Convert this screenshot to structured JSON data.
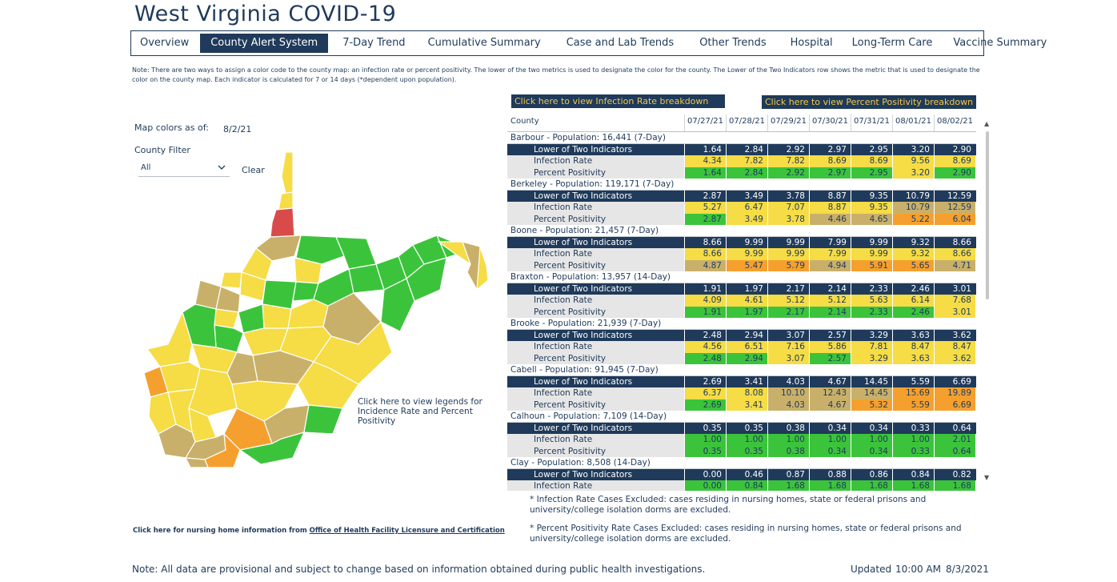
{
  "title": "West Virginia COVID-19",
  "nav": {
    "tabs": [
      {
        "label": "Overview",
        "active": false
      },
      {
        "label": "County Alert System",
        "active": true
      },
      {
        "label": "7-Day Trend",
        "active": false
      },
      {
        "label": "Cumulative Summary",
        "active": false
      },
      {
        "label": "Case and Lab Trends",
        "active": false
      },
      {
        "label": "Other Trends",
        "active": false
      },
      {
        "label": "Hospital",
        "active": false
      },
      {
        "label": "Long-Term Care",
        "active": false
      },
      {
        "label": "Vaccine Summary",
        "active": false
      }
    ]
  },
  "note_top": "Note: There are two ways to assign a color code to the county map: an infection rate or percent positivity. The lower of the two metrics is used to designate the color for the county. The Lower of the Two Indicators row shows the metric that is used to designate the color on the county map. Each indicator is calculated for 7 or 14 days (*dependent upon population).",
  "map_panel": {
    "map_colors_label": "Map colors as of:",
    "map_colors_date": "8/2/21",
    "county_filter_label": "County Filter",
    "filter_value": "All",
    "clear_label": "Clear",
    "legend_link": "Click here to view legends for Incidence Rate and Percent Positivity"
  },
  "nursing": {
    "prefix": "Click here for nursing home information from ",
    "link": "Office of Health Facility Licensure and Certification"
  },
  "buttons": {
    "infection_breakdown": "Click here to view Infection Rate breakdown",
    "positivity_breakdown": "Click here to view Percent Positivity breakdown"
  },
  "table": {
    "county_header": "County",
    "dates": [
      "07/27/21",
      "07/28/21",
      "07/29/21",
      "07/30/21",
      "07/31/21",
      "08/01/21",
      "08/02/21"
    ],
    "row_labels": [
      "Lower of Two Indicators",
      "Infection Rate",
      "Percent Positivity"
    ],
    "groups": [
      {
        "name": "Barbour - Population: 16,441 (7-Day)",
        "lower": [
          "1.64",
          "2.84",
          "2.92",
          "2.97",
          "2.95",
          "3.20",
          "2.90"
        ],
        "infection": [
          "4.34",
          "7.82",
          "7.82",
          "8.69",
          "8.69",
          "9.56",
          "8.69"
        ],
        "infection_colors": [
          "yellow",
          "yellow",
          "yellow",
          "yellow",
          "yellow",
          "yellow",
          "yellow"
        ],
        "positivity": [
          "1.64",
          "2.84",
          "2.92",
          "2.97",
          "2.95",
          "3.20",
          "2.90"
        ],
        "positivity_colors": [
          "green",
          "green",
          "green",
          "green",
          "green",
          "yellow",
          "green"
        ]
      },
      {
        "name": "Berkeley - Population: 119,171 (7-Day)",
        "lower": [
          "2.87",
          "3.49",
          "3.78",
          "8.87",
          "9.35",
          "10.79",
          "12.59"
        ],
        "infection": [
          "5.27",
          "6.47",
          "7.07",
          "8.87",
          "9.35",
          "10.79",
          "12.59"
        ],
        "infection_colors": [
          "yellow",
          "yellow",
          "yellow",
          "yellow",
          "yellow",
          "gold",
          "gold"
        ],
        "positivity": [
          "2.87",
          "3.49",
          "3.78",
          "4.46",
          "4.65",
          "5.22",
          "6.04"
        ],
        "positivity_colors": [
          "green",
          "yellow",
          "yellow",
          "gold",
          "gold",
          "orange",
          "orange"
        ]
      },
      {
        "name": "Boone - Population: 21,457 (7-Day)",
        "lower": [
          "8.66",
          "9.99",
          "9.99",
          "7.99",
          "9.99",
          "9.32",
          "8.66"
        ],
        "infection": [
          "8.66",
          "9.99",
          "9.99",
          "7.99",
          "9.99",
          "9.32",
          "8.66"
        ],
        "infection_colors": [
          "yellow",
          "yellow",
          "yellow",
          "yellow",
          "yellow",
          "yellow",
          "yellow"
        ],
        "positivity": [
          "4.87",
          "5.47",
          "5.79",
          "4.94",
          "5.91",
          "5.65",
          "4.71"
        ],
        "positivity_colors": [
          "gold",
          "orange",
          "orange",
          "gold",
          "orange",
          "orange",
          "gold"
        ]
      },
      {
        "name": "Braxton - Population: 13,957 (14-Day)",
        "lower": [
          "1.91",
          "1.97",
          "2.17",
          "2.14",
          "2.33",
          "2.46",
          "3.01"
        ],
        "infection": [
          "4.09",
          "4.61",
          "5.12",
          "5.12",
          "5.63",
          "6.14",
          "7.68"
        ],
        "infection_colors": [
          "yellow",
          "yellow",
          "yellow",
          "yellow",
          "yellow",
          "yellow",
          "yellow"
        ],
        "positivity": [
          "1.91",
          "1.97",
          "2.17",
          "2.14",
          "2.33",
          "2.46",
          "3.01"
        ],
        "positivity_colors": [
          "green",
          "green",
          "green",
          "green",
          "green",
          "green",
          "yellow"
        ]
      },
      {
        "name": "Brooke - Population: 21,939 (7-Day)",
        "lower": [
          "2.48",
          "2.94",
          "3.07",
          "2.57",
          "3.29",
          "3.63",
          "3.62"
        ],
        "infection": [
          "4.56",
          "6.51",
          "7.16",
          "5.86",
          "7.81",
          "8.47",
          "8.47"
        ],
        "infection_colors": [
          "yellow",
          "yellow",
          "yellow",
          "yellow",
          "yellow",
          "yellow",
          "yellow"
        ],
        "positivity": [
          "2.48",
          "2.94",
          "3.07",
          "2.57",
          "3.29",
          "3.63",
          "3.62"
        ],
        "positivity_colors": [
          "green",
          "green",
          "yellow",
          "green",
          "yellow",
          "yellow",
          "yellow"
        ]
      },
      {
        "name": "Cabell - Population: 91,945 (7-Day)",
        "lower": [
          "2.69",
          "3.41",
          "4.03",
          "4.67",
          "14.45",
          "5.59",
          "6.69"
        ],
        "infection": [
          "6.37",
          "8.08",
          "10.10",
          "12.43",
          "14.45",
          "15.69",
          "19.89"
        ],
        "infection_colors": [
          "yellow",
          "yellow",
          "gold",
          "gold",
          "gold",
          "orange",
          "orange"
        ],
        "positivity": [
          "2.69",
          "3.41",
          "4.03",
          "4.67",
          "5.32",
          "5.59",
          "6.69"
        ],
        "positivity_colors": [
          "green",
          "yellow",
          "gold",
          "gold",
          "orange",
          "orange",
          "orange"
        ]
      },
      {
        "name": "Calhoun - Population: 7,109 (14-Day)",
        "lower": [
          "0.35",
          "0.35",
          "0.38",
          "0.34",
          "0.34",
          "0.33",
          "0.64"
        ],
        "infection": [
          "1.00",
          "1.00",
          "1.00",
          "1.00",
          "1.00",
          "1.00",
          "2.01"
        ],
        "infection_colors": [
          "green",
          "green",
          "green",
          "green",
          "green",
          "green",
          "green"
        ],
        "positivity": [
          "0.35",
          "0.35",
          "0.38",
          "0.34",
          "0.34",
          "0.33",
          "0.64"
        ],
        "positivity_colors": [
          "green",
          "green",
          "green",
          "green",
          "green",
          "green",
          "green"
        ]
      },
      {
        "name": "Clay - Population: 8,508 (14-Day)",
        "lower": [
          "0.00",
          "0.46",
          "0.87",
          "0.88",
          "0.86",
          "0.84",
          "0.82"
        ],
        "infection": [
          "0.00",
          "0.84",
          "1.68",
          "1.68",
          "1.68",
          "1.68",
          "1.68"
        ],
        "infection_colors": [
          "green",
          "green",
          "green",
          "green",
          "green",
          "green",
          "green"
        ],
        "positivity": [
          "",
          "",
          "",
          "",
          "",
          "",
          ""
        ],
        "positivity_colors": [
          "green",
          "green",
          "green",
          "green",
          "green",
          "green",
          "green"
        ]
      }
    ]
  },
  "colors": {
    "green": "#3bc43b",
    "yellow": "#f6dc45",
    "gold": "#c9b06a",
    "orange": "#f5a02e",
    "red": "#d94b4b",
    "navy": "#1f3a5a"
  },
  "footnotes": [
    "* Infection Rate Cases Excluded: cases residing in nursing homes, state or federal prisons and university/college isolation dorms are excluded.",
    "* Percent Positivity Rate Cases Excluded: cases residing in nursing homes, state or federal prisons and university/college isolation dorms are excluded."
  ],
  "bottom_note": "Note: All data are provisional and subject to change based on information obtained during public health investigations.",
  "updated": {
    "label": "Updated",
    "time": "10:00 AM",
    "date": "8/3/2021"
  }
}
